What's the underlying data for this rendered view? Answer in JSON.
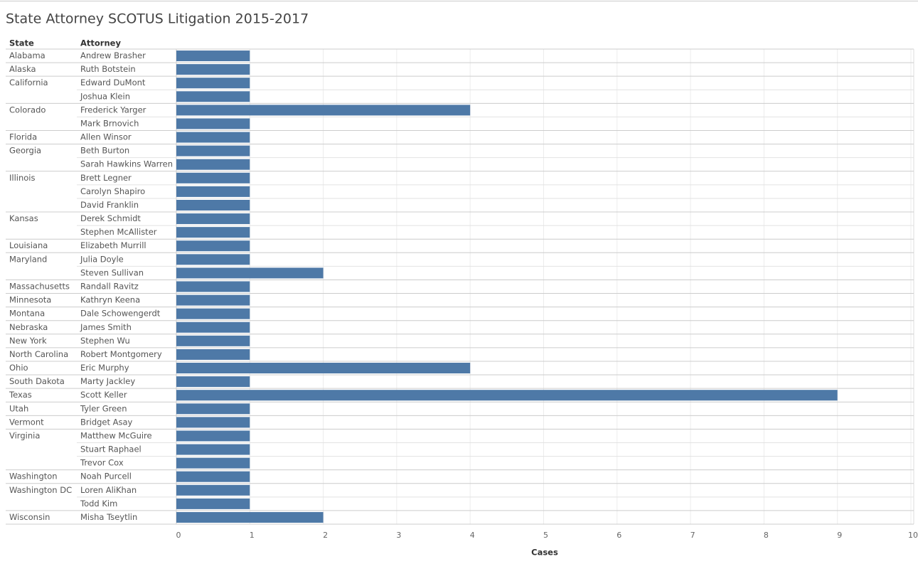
{
  "chart_data": {
    "type": "bar",
    "orientation": "horizontal",
    "title": "State Attorney SCOTUS Litigation 2015-2017",
    "row_headers": [
      "State",
      "Attorney"
    ],
    "states": [
      "Alabama",
      "Alaska",
      "California",
      null,
      "Colorado",
      null,
      "Florida",
      "Georgia",
      null,
      "Illinois",
      null,
      null,
      "Kansas",
      null,
      "Louisiana",
      "Maryland",
      null,
      "Massachusetts",
      "Minnesota",
      "Montana",
      "Nebraska",
      "New York",
      "North Carolina",
      "Ohio",
      "South Dakota",
      "Texas",
      "Utah",
      "Vermont",
      "Virginia",
      null,
      null,
      "Washington",
      "Washington DC",
      null,
      "Wisconsin"
    ],
    "categories": [
      "Andrew Brasher",
      "Ruth Botstein",
      "Edward DuMont",
      "Joshua Klein",
      "Frederick Yarger",
      "Mark Brnovich",
      "Allen Winsor",
      "Beth Burton",
      "Sarah Hawkins Warren",
      "Brett Legner",
      "Carolyn Shapiro",
      "David Franklin",
      "Derek Schmidt",
      "Stephen McAllister",
      "Elizabeth Murrill",
      "Julia Doyle",
      "Steven Sullivan",
      "Randall Ravitz",
      "Kathryn Keena",
      "Dale Schowengerdt",
      "James Smith",
      "Stephen Wu",
      "Robert Montgomery",
      "Eric Murphy",
      "Marty Jackley",
      "Scott Keller",
      "Tyler Green",
      "Bridget Asay",
      "Matthew McGuire",
      "Stuart Raphael",
      "Trevor Cox",
      "Noah Purcell",
      "Loren AliKhan",
      "Todd Kim",
      "Misha Tseytlin"
    ],
    "values": [
      1,
      1,
      1,
      1,
      4,
      1,
      1,
      1,
      1,
      1,
      1,
      1,
      1,
      1,
      1,
      1,
      2,
      1,
      1,
      1,
      1,
      1,
      1,
      4,
      1,
      9,
      1,
      1,
      1,
      1,
      1,
      1,
      1,
      1,
      2
    ],
    "color": "#4e79a7",
    "xlabel": "Cases",
    "xlim": [
      0,
      10
    ],
    "xticks": [
      0,
      1,
      2,
      3,
      4,
      5,
      6,
      7,
      8,
      9,
      10
    ],
    "grid": true
  }
}
